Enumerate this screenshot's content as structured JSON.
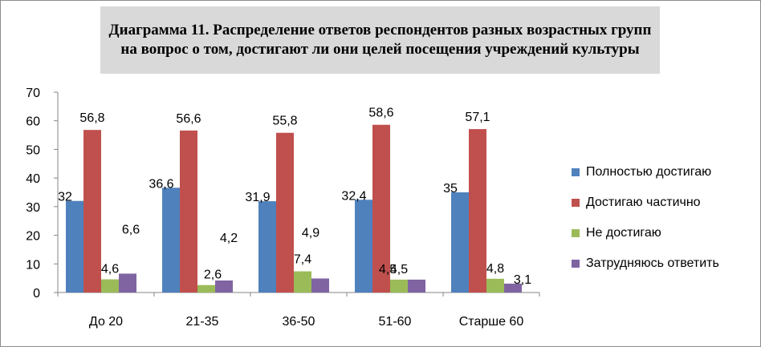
{
  "chart_data": {
    "type": "bar",
    "title": "Диаграмма 11. Распределение ответов респондентов разных возрастных групп на вопрос о том, достигают ли они целей посещения учреждений культуры",
    "categories": [
      "До 20",
      "21-35",
      "36-50",
      "51-60",
      "Старше 60"
    ],
    "series": [
      {
        "name": "Полностью достигаю",
        "color": "#4f81bd",
        "values": [
          32,
          36.6,
          31.9,
          32.4,
          35
        ],
        "labels": [
          "32",
          "36,6",
          "31,9",
          "32,4",
          "35"
        ]
      },
      {
        "name": "Достигаю частично",
        "color": "#c0504d",
        "values": [
          56.8,
          56.6,
          55.8,
          58.6,
          57.1
        ],
        "labels": [
          "56,8",
          "56,6",
          "55,8",
          "58,6",
          "57,1"
        ]
      },
      {
        "name": "Не достигаю",
        "color": "#9bbb59",
        "values": [
          4.6,
          2.6,
          7.4,
          4.5,
          4.8
        ],
        "labels": [
          "4,6",
          "2,6",
          "7,4",
          "4,5",
          "4,8"
        ]
      },
      {
        "name": "Затрудняюсь ответить",
        "color": "#8064a2",
        "values": [
          6.6,
          4.2,
          4.9,
          4.5,
          3.1
        ],
        "labels": [
          "6,6",
          "4,2",
          "4,9",
          "4,5",
          "3,1"
        ]
      }
    ],
    "ylim": [
      0,
      70
    ],
    "yticks": [
      "0",
      "10",
      "20",
      "30",
      "40",
      "50",
      "60",
      "70"
    ],
    "grid": false,
    "legend": "right"
  }
}
